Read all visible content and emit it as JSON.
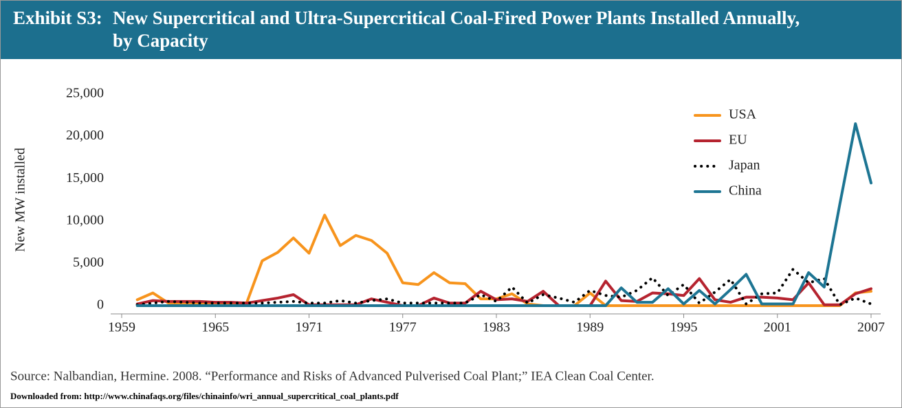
{
  "chart_data": {
    "type": "line",
    "label": "Exhibit S3:",
    "title": [
      "New Supercritical and Ultra-Supercritical Coal-Fired Power Plants Installed Annually,",
      "by Capacity"
    ],
    "y_label": "New MW installed",
    "source": "Source: Nalbandian, Hermine. 2008. “Performance and Risks of Advanced Pulverised Coal Plant;” IEA Clean Coal Center.",
    "download": "Downloaded from: http://www.chinafaqs.org/files/chinainfo/wri_annual_supercritical_coal_plants.pdf",
    "x": [
      1960,
      1961,
      1962,
      1963,
      1964,
      1965,
      1966,
      1967,
      1968,
      1969,
      1970,
      1971,
      1972,
      1973,
      1974,
      1975,
      1976,
      1977,
      1978,
      1979,
      1980,
      1981,
      1982,
      1983,
      1984,
      1985,
      1986,
      1987,
      1988,
      1989,
      1990,
      1991,
      1992,
      1993,
      1994,
      1995,
      1996,
      1997,
      1998,
      1999,
      2000,
      2001,
      2002,
      2003,
      2004,
      2005,
      2006,
      2007
    ],
    "xlim": [
      1959,
      2007
    ],
    "xticks": [
      1959,
      1965,
      1971,
      1977,
      1983,
      1989,
      1995,
      2001,
      2007
    ],
    "ylim": [
      0,
      25000
    ],
    "yticks": [
      0,
      {
        "value": 5000,
        "label": "5,000"
      },
      {
        "value": 10000,
        "label": "10,000"
      },
      {
        "value": 15000,
        "label": "15,000"
      },
      {
        "value": 20000,
        "label": "20,000"
      },
      {
        "value": 25000,
        "label": "25,000"
      }
    ],
    "legend": "top-right",
    "series": [
      {
        "name": "USA",
        "color": "#f7941d",
        "values": [
          700,
          1500,
          300,
          300,
          300,
          300,
          300,
          300,
          5300,
          6300,
          8000,
          6200,
          10700,
          7100,
          8300,
          7700,
          6200,
          2700,
          2500,
          3900,
          2700,
          2600,
          800,
          800,
          1400,
          200,
          0,
          0,
          0,
          1500,
          0,
          0,
          0,
          0,
          0,
          0,
          0,
          0,
          0,
          0,
          0,
          0,
          0,
          0,
          0,
          0,
          1500,
          1700
        ]
      },
      {
        "name": "EU",
        "color": "#b5232f",
        "values": [
          200,
          600,
          500,
          500,
          500,
          400,
          400,
          300,
          600,
          900,
          1300,
          100,
          100,
          100,
          100,
          800,
          400,
          0,
          0,
          900,
          300,
          300,
          1700,
          700,
          800,
          500,
          1700,
          0,
          0,
          0,
          2900,
          600,
          500,
          1500,
          1400,
          1200,
          3200,
          700,
          400,
          1000,
          1000,
          900,
          700,
          2700,
          100,
          100,
          1400,
          2000
        ]
      },
      {
        "name": "Japan",
        "color": "#000000",
        "dash": "dotted",
        "values": [
          100,
          300,
          500,
          400,
          300,
          300,
          300,
          300,
          300,
          400,
          500,
          300,
          300,
          600,
          300,
          600,
          800,
          300,
          300,
          300,
          300,
          300,
          1300,
          500,
          2200,
          300,
          1300,
          900,
          400,
          1800,
          1200,
          1000,
          1800,
          3300,
          1200,
          2500,
          300,
          1600,
          3100,
          200,
          1400,
          1500,
          4300,
          2700,
          3200,
          100,
          900,
          200
        ]
      },
      {
        "name": "China",
        "color": "#1d7593",
        "values": [
          0,
          0,
          0,
          0,
          0,
          0,
          0,
          0,
          0,
          0,
          0,
          0,
          0,
          0,
          0,
          0,
          0,
          0,
          0,
          0,
          0,
          0,
          0,
          0,
          0,
          0,
          0,
          0,
          0,
          0,
          0,
          2100,
          400,
          400,
          2000,
          200,
          1800,
          200,
          1900,
          3700,
          200,
          200,
          200,
          3900,
          2200,
          12000,
          21500,
          14500
        ]
      }
    ]
  }
}
